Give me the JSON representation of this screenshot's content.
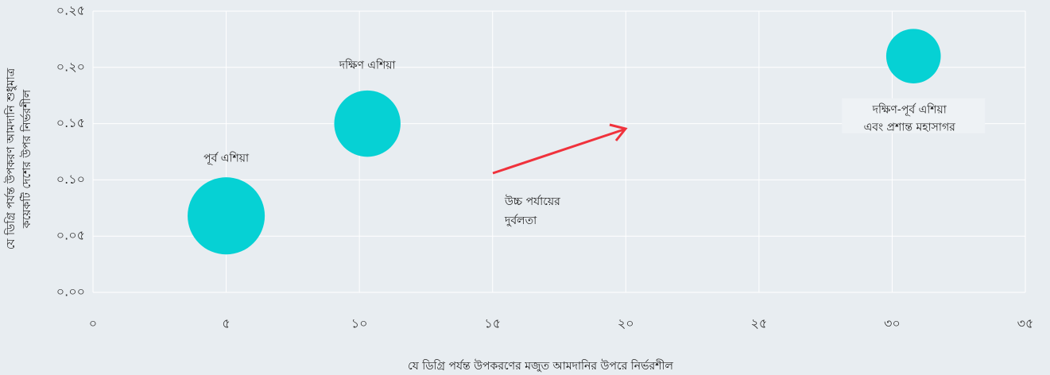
{
  "chart_data": {
    "type": "bubble",
    "x_label": "যে ডিগ্রি পর্যন্ত উপকরণের মজুত আমদানির উপরে নির্ভরশীল",
    "y_label": [
      "যে ডিগ্রি পর্যন্ত উপকরণ আমদানি শুধুমাত্র",
      "কয়েকটি দেশের উপর নির্ভরশীল"
    ],
    "annotation": [
      "উচ্চ পর্যায়ের",
      "দুর্বলতা"
    ],
    "annotation_color": "#f0323c",
    "color": "#06d1d4",
    "labels": [
      "পূর্ব এশিয়া",
      "দক্ষিণ এশিয়া",
      [
        "দক্ষিণ-পূর্ব এশিয়া",
        "এবং প্রশান্ত মহাসাগর"
      ]
    ],
    "x": [
      5,
      10.3,
      30.8
    ],
    "values": [
      0.068,
      0.15,
      0.21
    ],
    "sizes": [
      2.3,
      1.7,
      1.15
    ],
    "xlim": [
      0,
      35
    ],
    "ylim": [
      0,
      0.25
    ],
    "xticks": [
      {
        "value": 0,
        "label": "০"
      },
      {
        "value": 5,
        "label": "৫"
      },
      {
        "value": 10,
        "label": "১০"
      },
      {
        "value": 15,
        "label": "১৫"
      },
      {
        "value": 20,
        "label": "২০"
      },
      {
        "value": 25,
        "label": "২৫"
      },
      {
        "value": 30,
        "label": "৩০"
      },
      {
        "value": 35,
        "label": "৩৫"
      }
    ],
    "yticks": [
      {
        "value": 0,
        "label": "০.০০"
      },
      {
        "value": 0.05,
        "label": "০.০৫"
      },
      {
        "value": 0.1,
        "label": "০.১০"
      },
      {
        "value": 0.15,
        "label": "০.১৫"
      },
      {
        "value": 0.2,
        "label": "০.২০"
      },
      {
        "value": 0.25,
        "label": "০.২৫"
      }
    ],
    "grid": true
  }
}
